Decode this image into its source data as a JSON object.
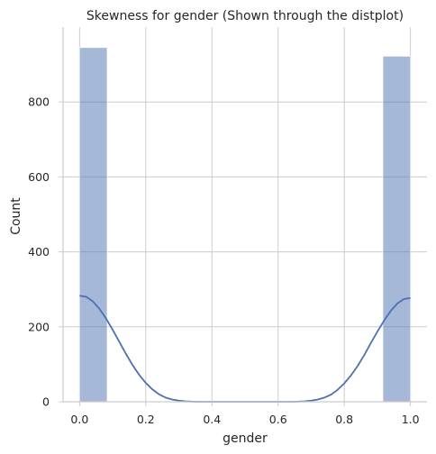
{
  "chart_data": {
    "type": "bar",
    "title": "Skewness for gender (Shown through the distplot)",
    "xlabel": "gender",
    "ylabel": "Count",
    "xlim": [
      -0.05,
      1.05
    ],
    "ylim": [
      0,
      1000
    ],
    "xticks": [
      "0.0",
      "0.2",
      "0.4",
      "0.6",
      "0.8",
      "1.0"
    ],
    "yticks": [
      "0",
      "200",
      "400",
      "600",
      "800"
    ],
    "bins": [
      {
        "x0": 0.0,
        "x1": 0.0833,
        "count": 945
      },
      {
        "x0": 0.9167,
        "x1": 1.0,
        "count": 922
      }
    ],
    "kde": {
      "x": [
        0.0,
        0.02,
        0.04,
        0.06,
        0.08,
        0.1,
        0.12,
        0.14,
        0.16,
        0.18,
        0.2,
        0.22,
        0.24,
        0.26,
        0.28,
        0.3,
        0.32,
        0.35,
        0.4,
        0.45,
        0.5,
        0.55,
        0.6,
        0.65,
        0.68,
        0.7,
        0.72,
        0.74,
        0.76,
        0.78,
        0.8,
        0.82,
        0.84,
        0.86,
        0.88,
        0.9,
        0.92,
        0.94,
        0.96,
        0.98,
        1.0
      ],
      "y": [
        283,
        280,
        268,
        248,
        222,
        192,
        160,
        128,
        98,
        72,
        50,
        33,
        20,
        11,
        6,
        3,
        1,
        0,
        0,
        0,
        0,
        0,
        0,
        0,
        1,
        3,
        6,
        11,
        19,
        32,
        49,
        70,
        95,
        124,
        156,
        187,
        216,
        242,
        262,
        274,
        277
      ]
    },
    "grid": true,
    "colors": {
      "bar": "#4c72b0",
      "kde": "#4c72b0",
      "grid": "#cccccc"
    }
  }
}
